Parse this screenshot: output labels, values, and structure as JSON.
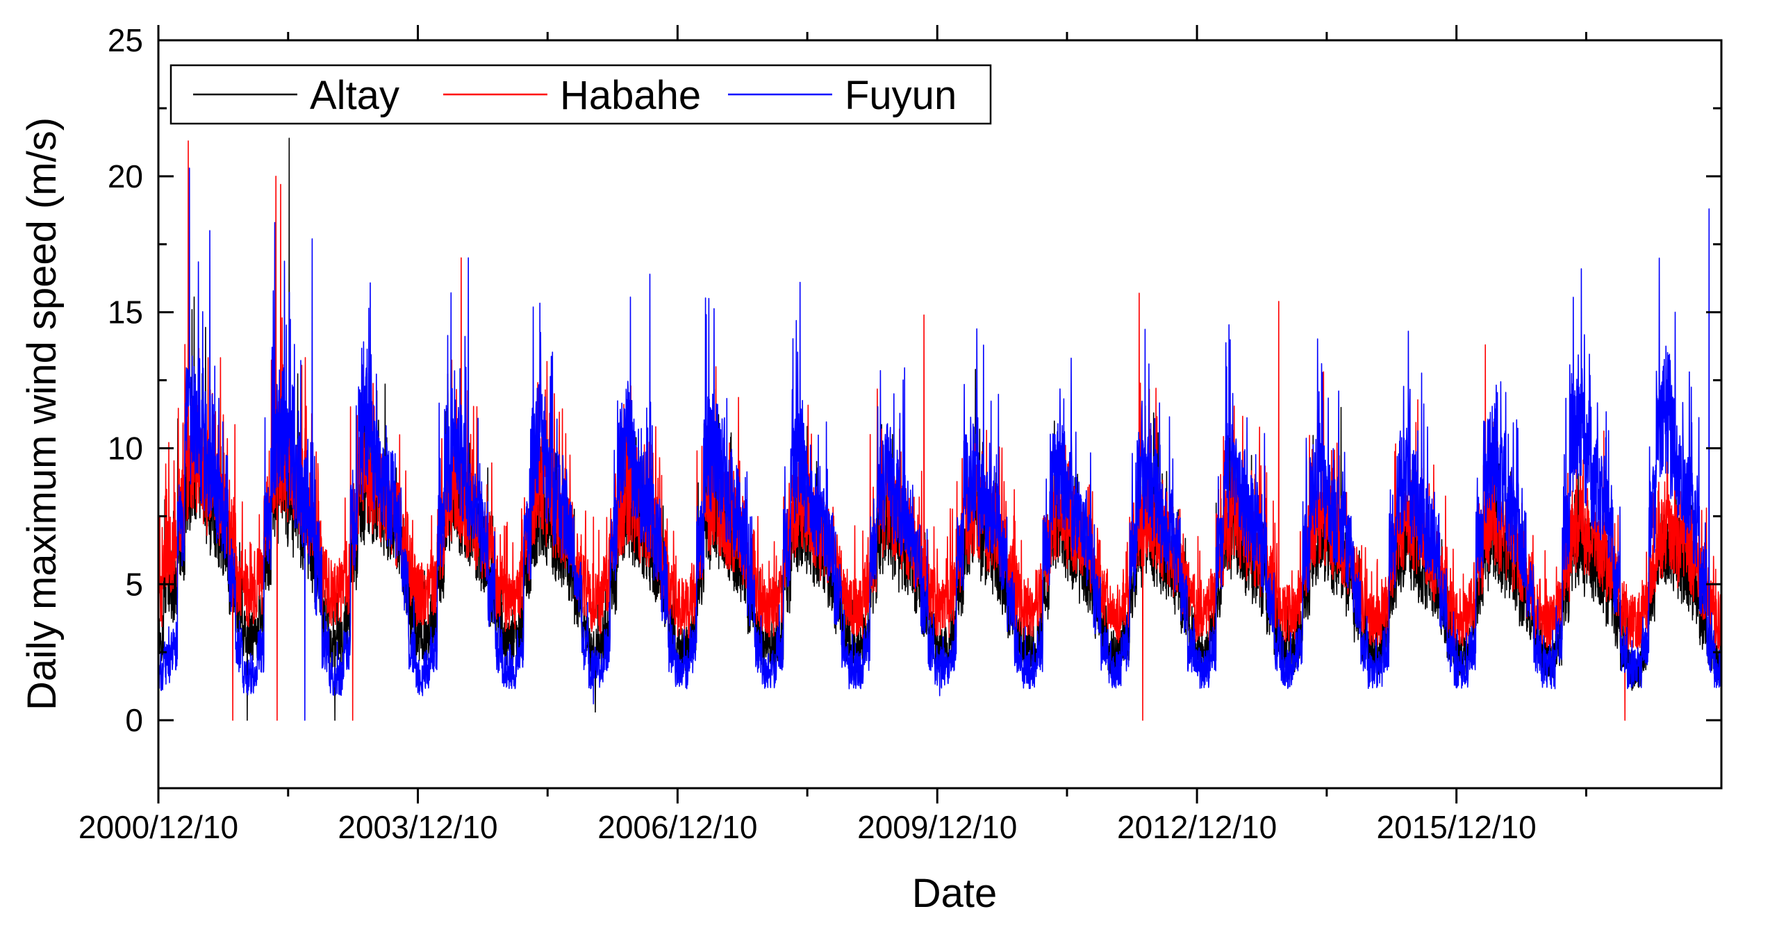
{
  "chart_data": {
    "type": "line",
    "title": "",
    "xlabel": "Date",
    "ylabel": "Daily maximum wind speed (m/s)",
    "x_axis": {
      "type": "date",
      "range": [
        "2000/12/10",
        "2019/01/01"
      ],
      "tick_labels": [
        "2000/12/10",
        "2003/12/10",
        "2006/12/10",
        "2009/12/10",
        "2012/12/10",
        "2015/12/10"
      ],
      "minor_ticks_per_interval": 1
    },
    "y_axis": {
      "range": [
        -2.5,
        25
      ],
      "ticks": [
        0,
        5,
        10,
        15,
        20,
        25
      ],
      "minor_ticks": [
        -2.5,
        2.5,
        7.5,
        12.5,
        17.5,
        22.5
      ]
    },
    "grid": false,
    "legend": {
      "placement": "top-left",
      "entries": [
        "Altay",
        "Habahe",
        "Fuyun"
      ]
    },
    "series": [
      {
        "name": "Altay",
        "color": "#000000",
        "sampling": "approximate daily series, summarized as monthly means with notable peaks",
        "monthly_means": {
          "2001": [
            5.0,
            4.5,
            6.5,
            8.5,
            9.0,
            8.5,
            7.5,
            7.0,
            6.5,
            5.0,
            3.8,
            3.0
          ],
          "2002": [
            3.0,
            3.5,
            6.0,
            8.0,
            9.0,
            8.0,
            7.5,
            7.0,
            6.0,
            5.0,
            3.5,
            2.5
          ],
          "2003": [
            2.8,
            3.5,
            6.0,
            8.0,
            8.5,
            8.0,
            7.5,
            7.0,
            6.5,
            5.0,
            3.5,
            3.0
          ],
          "2004": [
            3.0,
            3.5,
            5.5,
            7.5,
            8.0,
            7.5,
            7.0,
            6.5,
            6.0,
            4.5,
            3.5,
            2.8
          ],
          "2005": [
            2.8,
            3.2,
            5.5,
            7.0,
            7.5,
            7.0,
            6.5,
            6.0,
            5.5,
            4.5,
            3.2,
            2.5
          ],
          "2006": [
            2.5,
            3.0,
            5.0,
            7.0,
            7.5,
            7.0,
            6.5,
            6.0,
            5.5,
            4.5,
            3.2,
            2.5
          ],
          "2007": [
            2.5,
            3.0,
            5.0,
            7.0,
            7.5,
            7.0,
            6.5,
            6.0,
            5.5,
            4.2,
            3.0,
            2.5
          ],
          "2008": [
            2.5,
            3.0,
            5.0,
            6.8,
            7.0,
            6.8,
            6.2,
            6.0,
            5.2,
            4.2,
            3.0,
            2.5
          ],
          "2009": [
            2.5,
            3.0,
            5.0,
            6.5,
            7.0,
            6.5,
            6.0,
            5.8,
            5.0,
            4.0,
            3.0,
            2.5
          ],
          "2010": [
            2.5,
            3.0,
            4.8,
            6.5,
            7.0,
            6.5,
            6.0,
            5.5,
            5.0,
            4.0,
            3.0,
            2.5
          ],
          "2011": [
            2.5,
            3.0,
            4.8,
            6.5,
            6.8,
            6.5,
            6.0,
            5.5,
            5.0,
            4.0,
            3.0,
            2.4
          ],
          "2012": [
            2.4,
            3.0,
            4.8,
            6.2,
            6.8,
            6.2,
            5.8,
            5.5,
            5.0,
            4.0,
            3.0,
            2.4
          ],
          "2013": [
            2.4,
            3.0,
            4.8,
            6.2,
            6.5,
            6.2,
            5.8,
            5.5,
            4.8,
            4.0,
            3.0,
            2.4
          ],
          "2014": [
            2.4,
            3.0,
            4.8,
            6.2,
            6.5,
            6.2,
            5.8,
            5.5,
            4.8,
            3.8,
            2.8,
            2.4
          ],
          "2015": [
            2.4,
            3.0,
            4.8,
            6.0,
            6.5,
            6.0,
            5.5,
            5.2,
            4.8,
            3.8,
            2.8,
            2.3
          ],
          "2016": [
            2.3,
            2.8,
            4.5,
            6.0,
            6.5,
            6.0,
            5.5,
            5.2,
            4.5,
            3.8,
            2.8,
            2.3
          ],
          "2017": [
            2.2,
            2.8,
            4.5,
            6.0,
            6.2,
            5.8,
            5.5,
            5.0,
            4.5,
            3.5,
            2.6,
            1.8
          ],
          "2018": [
            1.8,
            2.5,
            4.5,
            6.0,
            6.2,
            5.8,
            5.5,
            5.0,
            4.5,
            3.5,
            2.6,
            2.0
          ]
        },
        "peaks": [
          [
            "2002/06/15",
            21.4
          ],
          [
            "2010/05/20",
            12.9
          ],
          [
            "2012/06/10",
            11.3
          ],
          [
            "2014/08/10",
            11.5
          ],
          [
            "2017/05/15",
            9.6
          ]
        ],
        "lows": [
          [
            "2001/12/20",
            0.0
          ],
          [
            "2002/12/25",
            0.0
          ],
          [
            "2005/12/28",
            0.3
          ],
          [
            "2017/12/20",
            1.1
          ]
        ]
      },
      {
        "name": "Habahe",
        "color": "#ff0000",
        "sampling": "approximate daily series, summarized as monthly means with notable peaks",
        "monthly_means": {
          "2001": [
            6.0,
            6.0,
            7.5,
            9.0,
            9.5,
            9.0,
            8.5,
            8.0,
            7.5,
            6.5,
            5.0,
            4.5
          ],
          "2002": [
            4.5,
            5.0,
            7.0,
            9.0,
            9.5,
            9.0,
            8.5,
            8.0,
            7.5,
            6.5,
            5.0,
            4.5
          ],
          "2003": [
            4.5,
            5.0,
            7.0,
            8.5,
            9.0,
            8.5,
            8.0,
            7.5,
            7.0,
            6.0,
            5.0,
            4.5
          ],
          "2004": [
            4.5,
            5.0,
            6.5,
            8.0,
            8.5,
            8.0,
            7.5,
            7.0,
            6.5,
            6.0,
            4.8,
            4.3
          ],
          "2005": [
            4.2,
            4.8,
            6.5,
            8.0,
            8.5,
            8.0,
            7.5,
            7.0,
            6.5,
            5.5,
            4.8,
            4.2
          ],
          "2006": [
            4.2,
            4.8,
            6.5,
            7.5,
            8.0,
            7.5,
            7.0,
            6.8,
            6.5,
            5.5,
            4.5,
            4.0
          ],
          "2007": [
            4.0,
            4.5,
            6.2,
            7.5,
            8.0,
            7.5,
            7.0,
            6.8,
            6.2,
            5.5,
            4.5,
            4.0
          ],
          "2008": [
            4.0,
            4.5,
            6.2,
            7.5,
            7.8,
            7.5,
            7.0,
            6.5,
            6.2,
            5.5,
            4.5,
            4.0
          ],
          "2009": [
            4.0,
            4.5,
            6.0,
            7.5,
            7.8,
            7.2,
            7.0,
            6.5,
            6.0,
            5.2,
            4.5,
            4.0
          ],
          "2010": [
            4.0,
            4.5,
            6.0,
            7.2,
            7.5,
            7.2,
            6.8,
            6.5,
            6.0,
            5.2,
            4.3,
            3.8
          ],
          "2011": [
            3.8,
            4.5,
            6.0,
            7.2,
            7.5,
            7.0,
            6.8,
            6.5,
            6.0,
            5.2,
            4.3,
            3.8
          ],
          "2012": [
            3.8,
            4.3,
            6.0,
            7.0,
            7.5,
            7.0,
            6.5,
            6.2,
            5.8,
            5.0,
            4.2,
            3.8
          ],
          "2013": [
            3.8,
            4.3,
            6.0,
            7.0,
            7.5,
            7.0,
            6.5,
            6.2,
            5.8,
            5.0,
            4.2,
            3.8
          ],
          "2014": [
            3.8,
            4.3,
            5.8,
            7.0,
            7.2,
            7.0,
            6.5,
            6.2,
            5.8,
            5.0,
            4.2,
            3.6
          ],
          "2015": [
            3.6,
            4.2,
            5.8,
            7.0,
            7.2,
            6.8,
            6.5,
            6.0,
            5.5,
            5.0,
            4.0,
            3.6
          ],
          "2016": [
            3.6,
            4.2,
            5.8,
            6.8,
            7.2,
            6.8,
            6.5,
            6.0,
            5.5,
            4.8,
            4.0,
            3.5
          ],
          "2017": [
            3.5,
            4.0,
            5.5,
            6.8,
            7.0,
            6.5,
            6.2,
            6.0,
            5.5,
            4.8,
            4.0,
            3.5
          ],
          "2018": [
            3.5,
            4.0,
            5.5,
            6.5,
            7.0,
            6.5,
            6.2,
            5.8,
            5.5,
            4.8,
            4.0,
            3.5
          ]
        },
        "peaks": [
          [
            "2001/04/15",
            21.3
          ],
          [
            "2002/04/20",
            20.0
          ],
          [
            "2002/05/10",
            19.7
          ],
          [
            "2004/06/10",
            17.0
          ],
          [
            "2009/10/15",
            14.9
          ],
          [
            "2012/04/10",
            15.7
          ],
          [
            "2013/11/20",
            15.4
          ],
          [
            "2016/04/10",
            13.8
          ]
        ],
        "lows": [
          [
            "2001/10/20",
            0.0
          ],
          [
            "2002/04/25",
            0.0
          ],
          [
            "2003/03/10",
            0.0
          ],
          [
            "2012/04/25",
            0.0
          ],
          [
            "2017/11/20",
            0.0
          ]
        ]
      },
      {
        "name": "Fuyun",
        "color": "#0000ff",
        "sampling": "approximate daily series, summarized as monthly means with notable peaks",
        "monthly_means": {
          "2001": [
            2.0,
            2.5,
            7.0,
            10.5,
            11.0,
            9.5,
            8.5,
            8.0,
            7.0,
            5.0,
            2.5,
            1.5
          ],
          "2002": [
            1.5,
            2.5,
            7.0,
            10.0,
            10.5,
            9.5,
            8.5,
            8.0,
            7.0,
            5.0,
            2.5,
            1.5
          ],
          "2003": [
            1.5,
            2.5,
            7.0,
            10.0,
            10.5,
            9.5,
            8.5,
            8.0,
            7.0,
            5.0,
            2.5,
            1.5
          ],
          "2004": [
            1.8,
            2.5,
            7.0,
            9.5,
            10.0,
            9.0,
            8.0,
            7.5,
            6.5,
            4.5,
            2.5,
            1.8
          ],
          "2005": [
            1.8,
            2.5,
            6.5,
            9.5,
            10.0,
            9.0,
            8.0,
            7.5,
            6.5,
            4.5,
            2.5,
            1.8
          ],
          "2006": [
            1.8,
            2.5,
            6.5,
            9.5,
            10.0,
            9.0,
            8.0,
            7.5,
            6.5,
            4.5,
            2.5,
            1.8
          ],
          "2007": [
            1.8,
            2.5,
            6.5,
            9.5,
            10.0,
            9.0,
            8.0,
            7.5,
            6.5,
            4.5,
            2.5,
            1.8
          ],
          "2008": [
            1.8,
            2.5,
            6.2,
            9.0,
            9.5,
            8.5,
            7.5,
            7.0,
            6.2,
            4.5,
            2.5,
            1.8
          ],
          "2009": [
            1.8,
            2.5,
            6.0,
            8.5,
            9.0,
            8.0,
            7.5,
            7.0,
            6.0,
            4.2,
            2.5,
            1.8
          ],
          "2010": [
            1.8,
            2.5,
            6.0,
            8.5,
            9.0,
            8.0,
            7.5,
            7.0,
            6.0,
            4.2,
            2.5,
            1.8
          ],
          "2011": [
            1.8,
            2.5,
            6.0,
            8.5,
            8.8,
            8.0,
            7.2,
            6.8,
            6.0,
            4.2,
            2.5,
            1.8
          ],
          "2012": [
            1.8,
            2.5,
            6.0,
            8.5,
            8.8,
            8.0,
            7.2,
            6.8,
            6.0,
            4.2,
            2.5,
            1.8
          ],
          "2013": [
            1.8,
            2.5,
            6.0,
            8.5,
            8.8,
            8.0,
            7.2,
            6.8,
            6.0,
            4.2,
            2.5,
            1.8
          ],
          "2014": [
            1.8,
            2.5,
            6.0,
            8.5,
            8.8,
            8.0,
            7.2,
            6.8,
            6.0,
            4.2,
            2.5,
            1.8
          ],
          "2015": [
            1.8,
            2.5,
            6.0,
            8.5,
            8.8,
            8.0,
            7.2,
            6.8,
            6.0,
            4.2,
            2.5,
            1.8
          ],
          "2016": [
            1.8,
            2.5,
            6.5,
            9.0,
            9.5,
            8.5,
            7.5,
            7.0,
            6.2,
            4.5,
            2.5,
            1.8
          ],
          "2017": [
            1.8,
            2.8,
            7.0,
            10.0,
            10.5,
            9.5,
            8.5,
            8.0,
            7.0,
            5.0,
            2.5,
            1.8
          ],
          "2018": [
            1.8,
            2.8,
            7.5,
            10.5,
            11.0,
            10.0,
            8.5,
            8.0,
            7.0,
            5.0,
            2.5,
            1.8
          ]
        },
        "peaks": [
          [
            "2001/04/20",
            20.3
          ],
          [
            "2001/07/15",
            18.0
          ],
          [
            "2002/04/15",
            18.3
          ],
          [
            "2002/09/20",
            17.7
          ],
          [
            "2004/07/10",
            17.0
          ],
          [
            "2006/08/15",
            16.4
          ],
          [
            "2008/05/10",
            16.1
          ],
          [
            "2017/05/20",
            16.6
          ],
          [
            "2018/06/20",
            15.0
          ],
          [
            "2018/11/10",
            18.8
          ]
        ],
        "lows": [
          [
            "2002/08/20",
            0.0
          ],
          [
            "2005/12/20",
            0.6
          ],
          [
            "2009/12/20",
            0.9
          ]
        ]
      }
    ]
  }
}
